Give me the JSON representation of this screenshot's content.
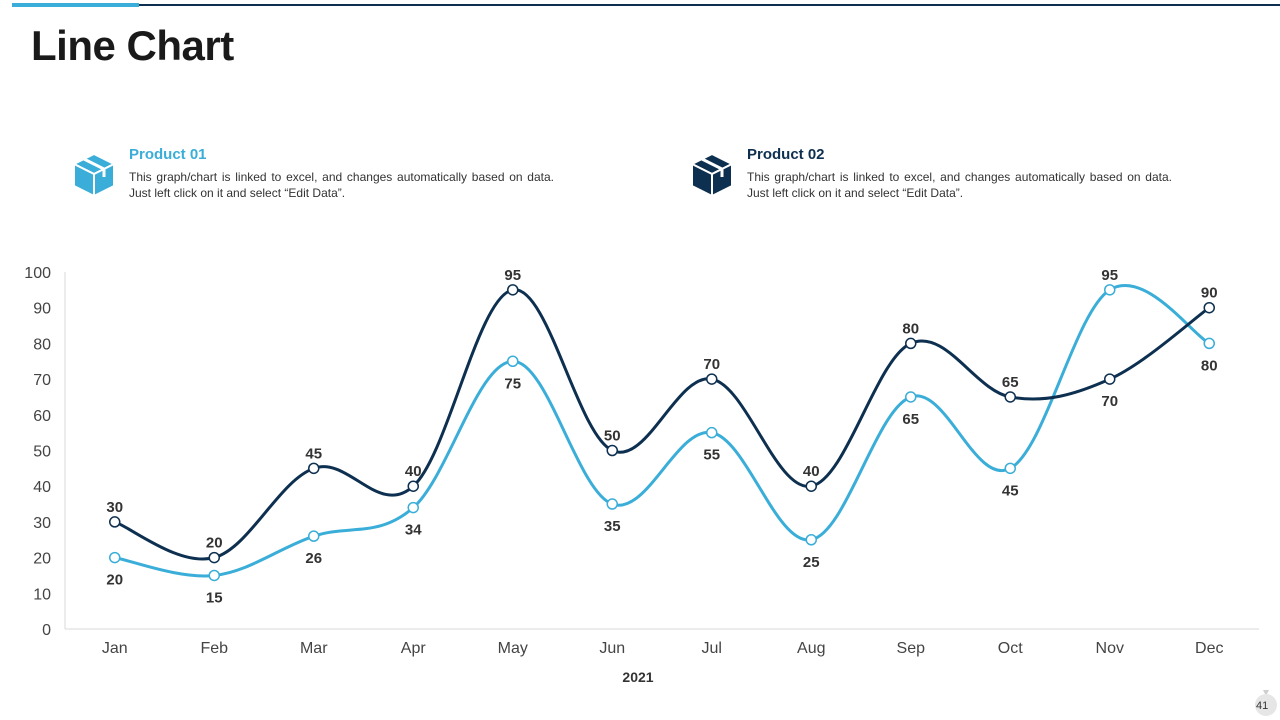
{
  "slide": {
    "title": "Line Chart",
    "page_number": "41"
  },
  "legend": [
    {
      "name": "Product 01",
      "description": "This graph/chart is linked to excel, and changes automatically based on data. Just left click on it and select “Edit Data”.",
      "color": "#3aaed8",
      "icon": "box-icon"
    },
    {
      "name": "Product 02",
      "description": "This graph/chart is linked to excel, and changes automatically based on data. Just left click on it and select “Edit Data”.",
      "color": "#0e3050",
      "icon": "box-icon"
    }
  ],
  "chart_data": {
    "type": "line",
    "title": "",
    "xlabel": "2021",
    "ylabel": "",
    "categories": [
      "Jan",
      "Feb",
      "Mar",
      "Apr",
      "May",
      "Jun",
      "Jul",
      "Aug",
      "Sep",
      "Oct",
      "Nov",
      "Dec"
    ],
    "ylim": [
      0,
      100
    ],
    "yticks": [
      0,
      10,
      20,
      30,
      40,
      50,
      60,
      70,
      80,
      90,
      100
    ],
    "grid": false,
    "series": [
      {
        "name": "Product 01",
        "color": "#3aaed8",
        "values": [
          20,
          15,
          26,
          34,
          75,
          35,
          55,
          25,
          65,
          45,
          95,
          80
        ]
      },
      {
        "name": "Product 02",
        "color": "#0e3050",
        "values": [
          30,
          20,
          45,
          40,
          95,
          50,
          70,
          40,
          80,
          65,
          70,
          90
        ]
      }
    ]
  }
}
